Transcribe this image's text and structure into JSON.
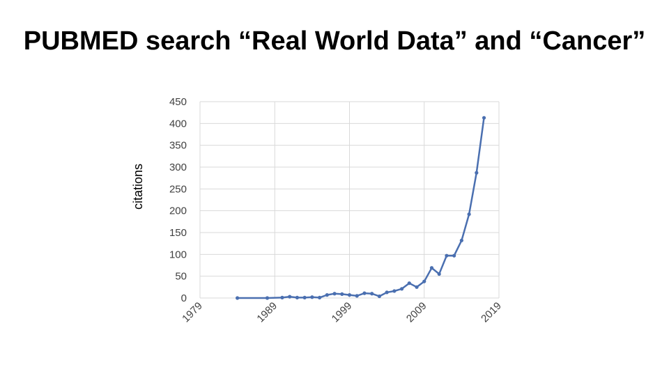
{
  "title": "PUBMED search “Real World Data” and “Cancer”",
  "chart_data": {
    "type": "line",
    "ylabel": "citations",
    "xlabel": "",
    "xlim": [
      1979,
      2019
    ],
    "ylim": [
      0,
      450
    ],
    "yticks": [
      0,
      50,
      100,
      150,
      200,
      250,
      300,
      350,
      400,
      450
    ],
    "xticks": [
      1979,
      1989,
      1999,
      2009,
      2019
    ],
    "grid": true,
    "line_color": "#4a6fb0",
    "series": [
      {
        "x": [
          1984,
          1988,
          1990,
          1991,
          1992,
          1993,
          1994,
          1995,
          1996,
          1997,
          1998,
          1999,
          2000,
          2001,
          2002,
          2003,
          2004,
          2005,
          2006,
          2007,
          2008,
          2009,
          2010,
          2011,
          2012,
          2013,
          2014,
          2015,
          2016,
          2017
        ],
        "y": [
          0,
          0,
          1,
          3,
          1,
          1,
          2,
          1,
          7,
          10,
          9,
          7,
          5,
          11,
          10,
          4,
          13,
          16,
          21,
          34,
          25,
          38,
          69,
          55,
          97,
          97,
          132,
          192,
          287,
          413
        ]
      }
    ]
  }
}
